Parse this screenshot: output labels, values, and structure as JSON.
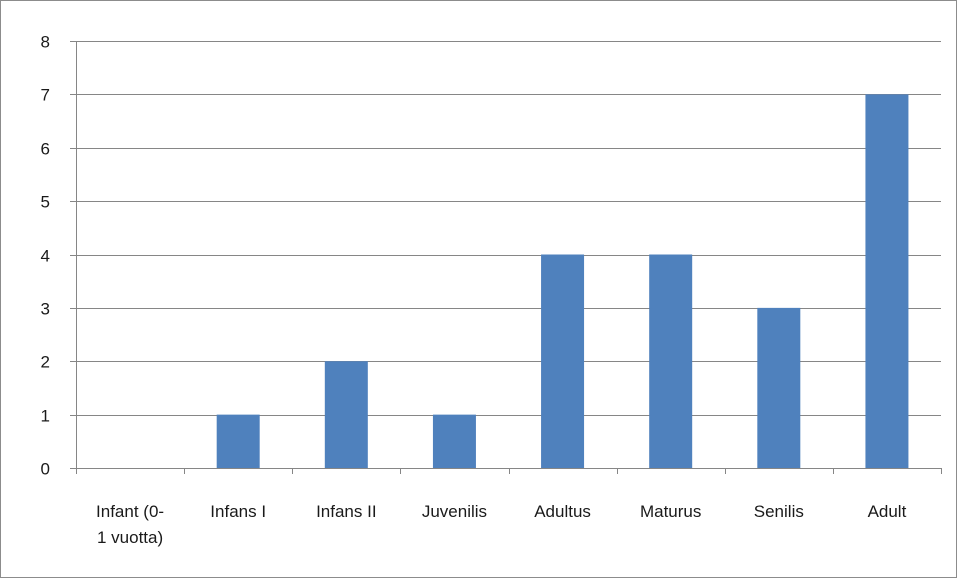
{
  "chart_data": {
    "type": "bar",
    "title": "",
    "xlabel": "",
    "ylabel": "",
    "categories": [
      [
        "Infant (0-",
        "1 vuotta)"
      ],
      [
        "Infans I"
      ],
      [
        "Infans II"
      ],
      [
        "Juvenilis"
      ],
      [
        "Adultus"
      ],
      [
        "Maturus"
      ],
      [
        "Senilis"
      ],
      [
        "Adult"
      ]
    ],
    "values": [
      0,
      1,
      2,
      1,
      4,
      4,
      3,
      7
    ],
    "ylim": [
      0,
      8
    ],
    "yticks": [
      "0",
      "1",
      "2",
      "3",
      "4",
      "5",
      "6",
      "7",
      "8"
    ],
    "grid": true,
    "legend": "none",
    "bar_color": "#4f81bd",
    "grid_color": "#868686"
  }
}
